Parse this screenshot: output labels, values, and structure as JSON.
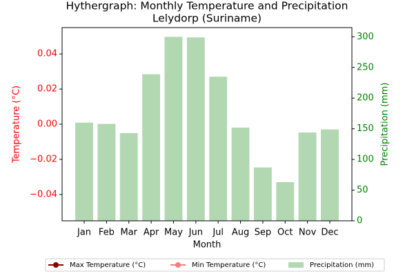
{
  "chart_data": {
    "type": "hythergraph",
    "title": "Hythergraph: Monthly Temperature and Precipitation",
    "subtitle": "Lelydorp (Suriname)",
    "x_label": "Month",
    "y_label": "Temperature (°C)",
    "y2_label": "Precipitation (mm)",
    "categories": [
      "Jan",
      "Feb",
      "Mar",
      "Apr",
      "May",
      "Jun",
      "Jul",
      "Aug",
      "Sep",
      "Oct",
      "Nov",
      "Dec"
    ],
    "series": [
      {
        "name": "Max Temperature (°C)",
        "type": "line",
        "color": "darkred",
        "values": [
          null,
          null,
          null,
          null,
          null,
          null,
          null,
          null,
          null,
          null,
          null,
          null
        ]
      },
      {
        "name": "Min Temperature (°C)",
        "type": "line",
        "color": "lightcoral",
        "values": [
          null,
          null,
          null,
          null,
          null,
          null,
          null,
          null,
          null,
          null,
          null,
          null
        ]
      },
      {
        "name": "Precipitation (mm)",
        "type": "bar",
        "axis": "y2",
        "color": "#b2d8b2",
        "values": [
          160,
          158,
          143,
          239,
          300,
          299,
          235,
          152,
          87,
          63,
          144,
          149
        ]
      }
    ],
    "ylim": [
      -0.055,
      0.055
    ],
    "yticks": [
      {
        "value": -0.04,
        "label": "−0.04"
      },
      {
        "value": -0.02,
        "label": "−0.02"
      },
      {
        "value": 0,
        "label": "0.00"
      },
      {
        "value": 0.02,
        "label": "0.02"
      },
      {
        "value": 0.04,
        "label": "0.04"
      }
    ],
    "y2lim": [
      0,
      315
    ],
    "y2ticks": [
      0,
      50,
      100,
      150,
      200,
      250,
      300
    ],
    "y_color": "red",
    "y2_color": "green",
    "legend": "below"
  }
}
